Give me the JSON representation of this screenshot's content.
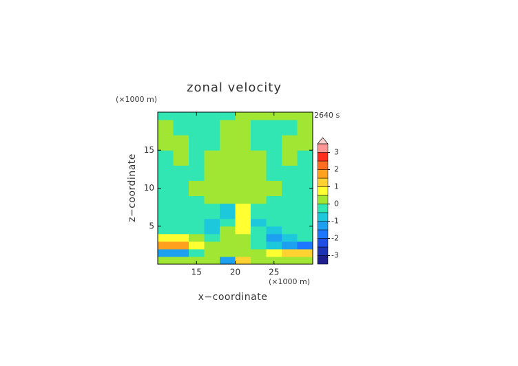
{
  "chart_data": {
    "type": "contour",
    "title": "zonal velocity",
    "time_label": "2640 s",
    "xlabel": "x−coordinate",
    "ylabel": "z−coordinate",
    "x_unit": "(×1000 m)",
    "y_unit": "(×1000 m)",
    "xlim": [
      10,
      30
    ],
    "ylim": [
      0,
      20
    ],
    "xticks": [
      15,
      20,
      25
    ],
    "yticks": [
      5,
      10,
      15
    ],
    "x": [
      11,
      13,
      15,
      17,
      19,
      21,
      23,
      25,
      27,
      29
    ],
    "y": [
      0.5,
      1.5,
      2.5,
      3.5,
      4.5,
      5.5,
      6.5,
      7.5,
      8.5,
      9.5,
      10.5,
      11.5,
      12.5,
      13.5,
      14.5,
      15.5,
      16.5,
      17.5,
      18.5,
      19.5
    ],
    "z": [
      [
        0.2,
        0.1,
        0,
        0,
        -1.2,
        1.2,
        0.3,
        0.2,
        0.1,
        0.3
      ],
      [
        -1.3,
        -1.2,
        -0.3,
        0.1,
        0.2,
        0.1,
        0.3,
        0.8,
        1.2,
        1.3
      ],
      [
        1.8,
        1.6,
        0.9,
        0.3,
        0.1,
        0.1,
        -0.3,
        -0.9,
        -1.5,
        -1.6
      ],
      [
        0.6,
        0.5,
        0.2,
        -0.3,
        0.2,
        0.3,
        -0.2,
        -1.1,
        -0.6,
        -0.4
      ],
      [
        -0.2,
        -0.1,
        -0.3,
        -0.8,
        0.3,
        0.5,
        -0.4,
        -1.0,
        -0.3,
        -0.2
      ],
      [
        -0.2,
        -0.2,
        -0.1,
        -1.0,
        -0.2,
        0.8,
        -0.6,
        -0.2,
        -0.2,
        -0.2
      ],
      [
        -0.2,
        -0.2,
        -0.2,
        -0.3,
        -0.8,
        0.9,
        -0.2,
        -0.2,
        -0.2,
        -0.2
      ],
      [
        -0.2,
        -0.2,
        -0.2,
        -0.2,
        -0.7,
        0.7,
        -0.1,
        -0.2,
        -0.2,
        -0.2
      ],
      [
        -0.2,
        -0.2,
        -0.1,
        0.2,
        0.2,
        0.2,
        0.2,
        -0.1,
        -0.2,
        -0.2
      ],
      [
        -0.2,
        -0.2,
        0.2,
        0.2,
        0.2,
        0.2,
        0.2,
        0.2,
        -0.2,
        -0.2
      ],
      [
        -0.2,
        -0.2,
        0.2,
        0.2,
        0.2,
        0.2,
        0.2,
        0.2,
        -0.2,
        -0.2
      ],
      [
        -0.2,
        -0.2,
        -0.2,
        0.2,
        0.2,
        0.2,
        0.2,
        -0.2,
        -0.2,
        -0.2
      ],
      [
        -0.2,
        -0.2,
        -0.2,
        0.2,
        0.2,
        0.2,
        0.2,
        -0.2,
        -0.2,
        -0.2
      ],
      [
        -0.2,
        0.2,
        -0.2,
        0.2,
        0.2,
        0.2,
        0.2,
        -0.2,
        0.2,
        -0.2
      ],
      [
        -0.2,
        0.2,
        -0.2,
        0.2,
        0.2,
        0.2,
        0.2,
        -0.2,
        0.2,
        -0.2
      ],
      [
        0.2,
        0.2,
        -0.2,
        -0.2,
        0.2,
        0.2,
        -0.2,
        -0.2,
        0.2,
        0.2
      ],
      [
        0.2,
        0.2,
        -0.2,
        -0.2,
        0.2,
        0.2,
        -0.2,
        -0.2,
        0.2,
        0.2
      ],
      [
        0.2,
        -0.2,
        -0.2,
        -0.2,
        0.2,
        0.2,
        -0.2,
        -0.2,
        -0.2,
        0.2
      ],
      [
        0.2,
        -0.2,
        -0.2,
        -0.2,
        0.2,
        0.2,
        -0.2,
        -0.2,
        -0.2,
        0.2
      ],
      [
        -0.2,
        -0.2,
        -0.2,
        -0.2,
        -0.2,
        0.2,
        0.2,
        0.2,
        0.2,
        0.2
      ]
    ],
    "levels": [
      -3.5,
      -3,
      -2.5,
      -2,
      -1.5,
      -1,
      -0.5,
      0,
      0.5,
      1,
      1.5,
      2,
      2.5,
      3,
      3.5
    ],
    "colors": [
      "#1e1e8c",
      "#1e32b4",
      "#1e4ee6",
      "#1e78ff",
      "#1ea0f0",
      "#1ec8dc",
      "#32e6b4",
      "#a0e632",
      "#ffff32",
      "#ffd232",
      "#ffa01e",
      "#ff6e1e",
      "#ff2d1e",
      "#ff9696"
    ],
    "cbar_ticks": [
      -3,
      -2,
      -1,
      0,
      1,
      2,
      3
    ]
  }
}
